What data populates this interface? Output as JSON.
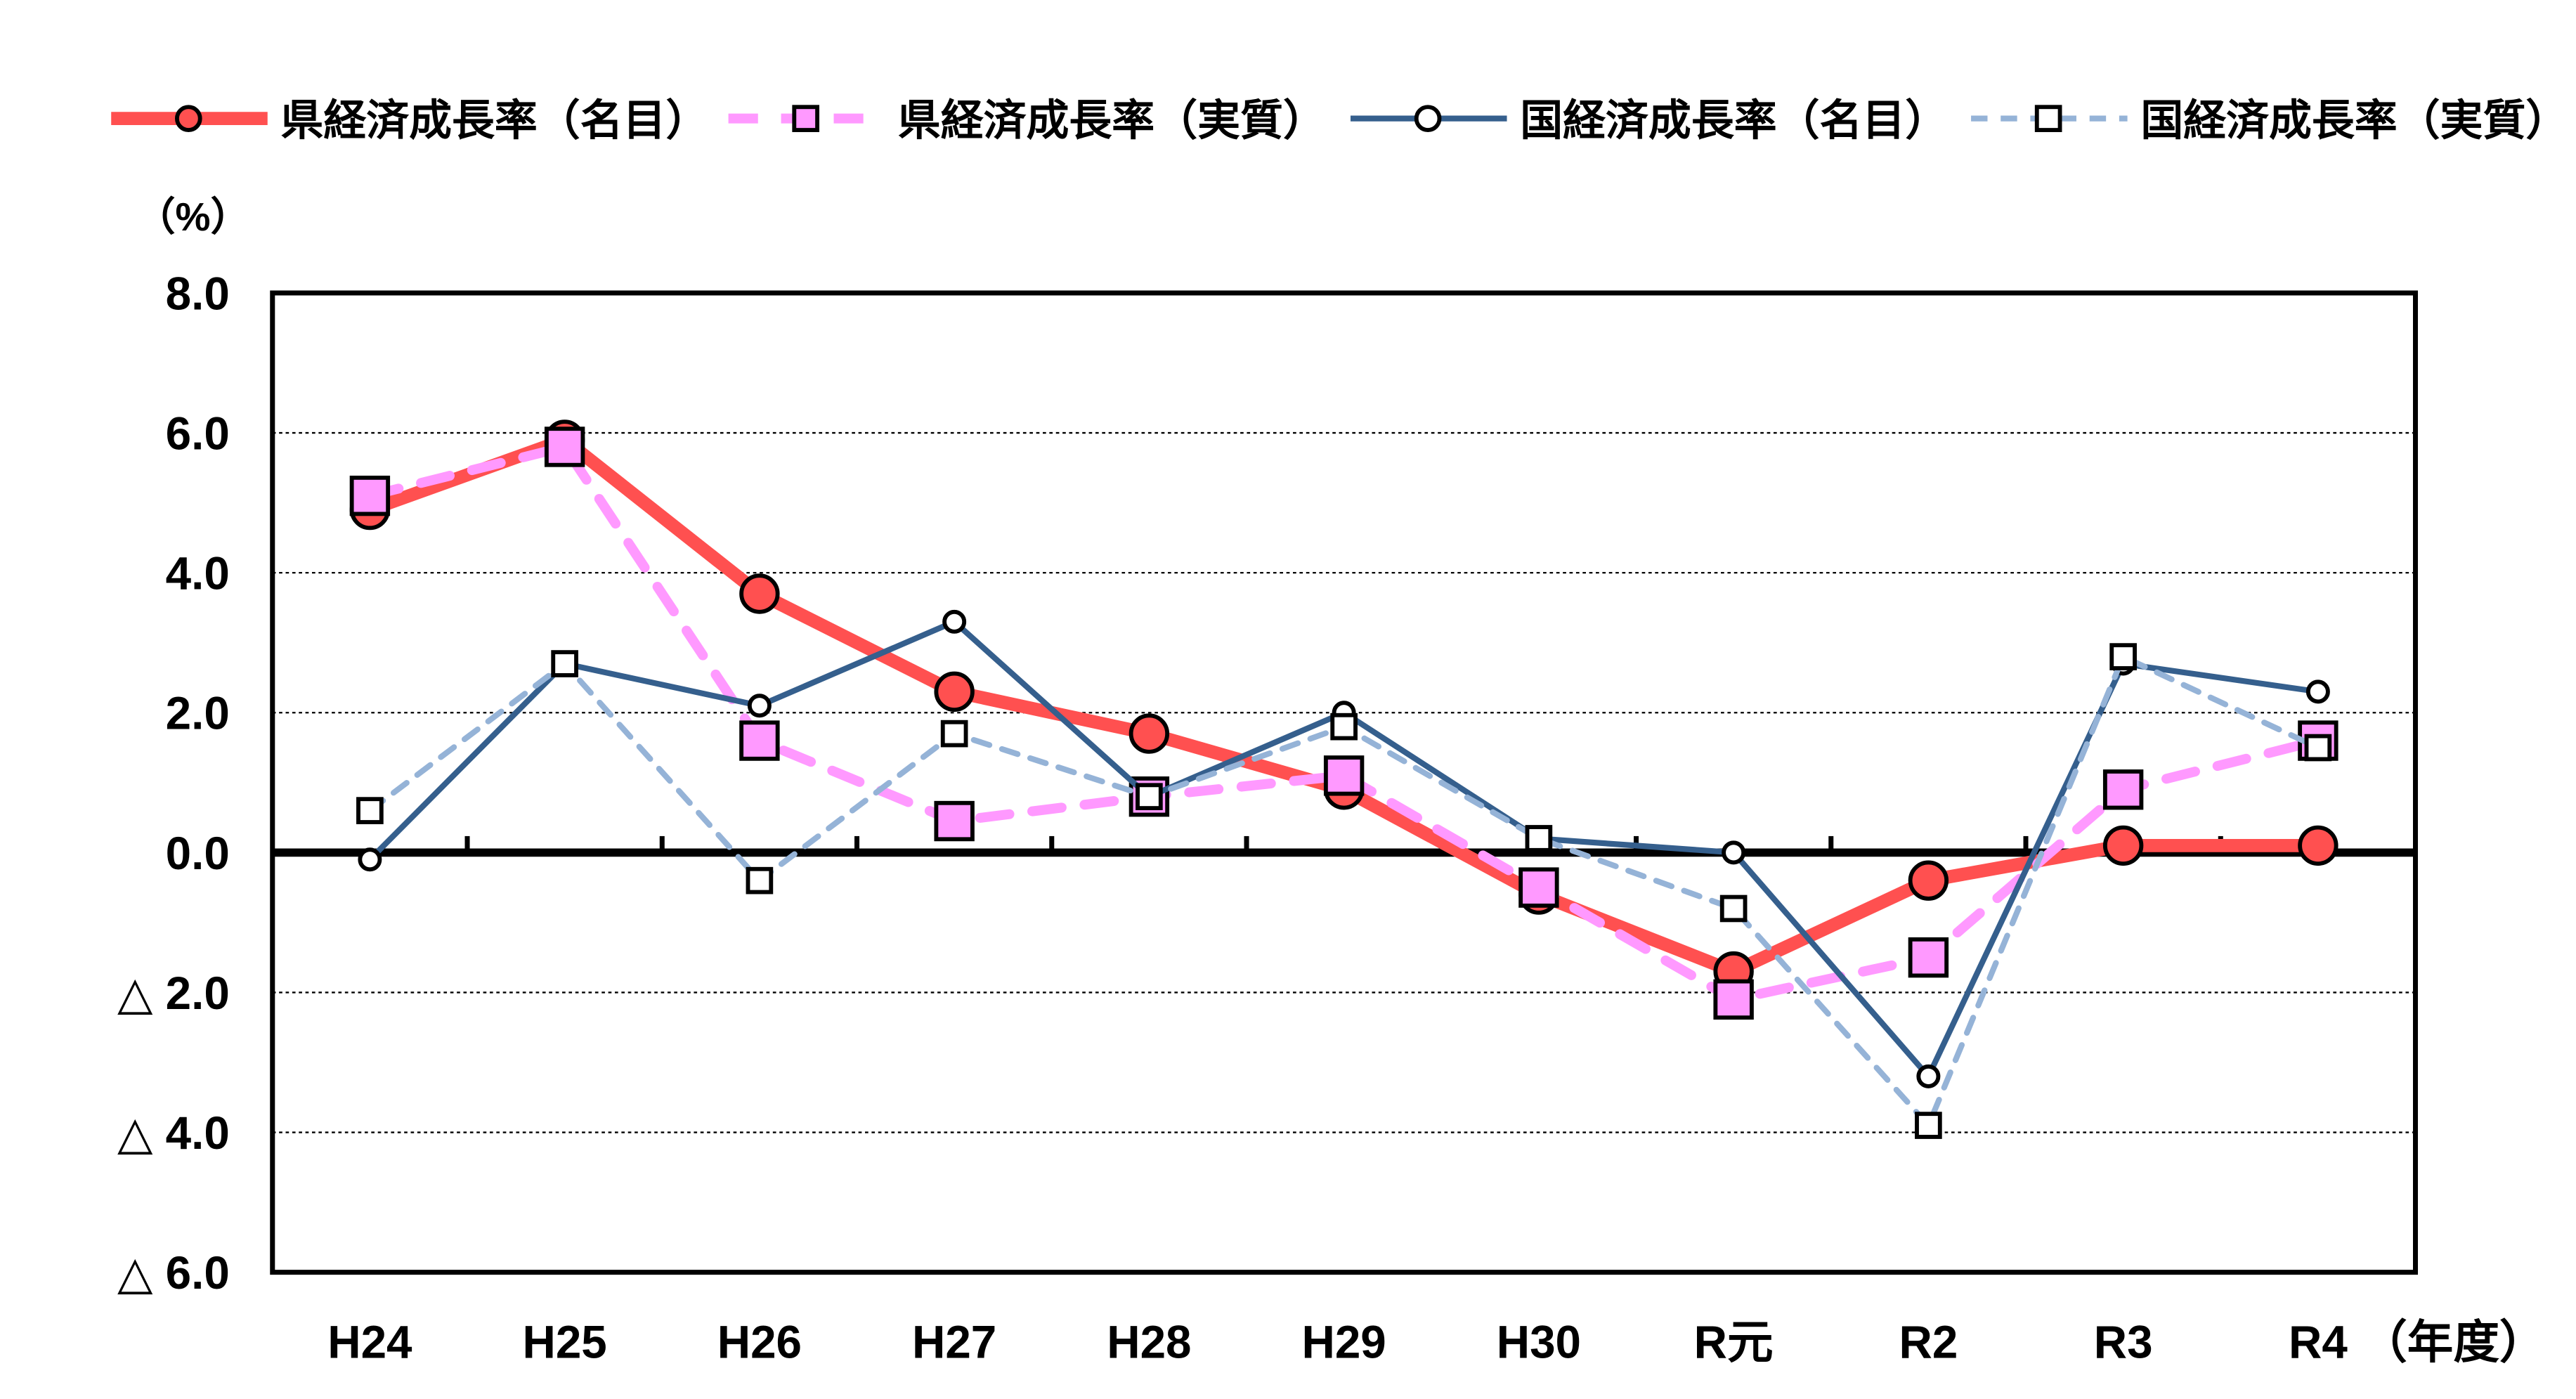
{
  "chart_data": {
    "type": "line",
    "title": "",
    "ylabel": "（%）",
    "xlabel": "（年度）",
    "categories": [
      "H24",
      "H25",
      "H26",
      "H27",
      "H28",
      "H29",
      "H30",
      "R元",
      "R2",
      "R3",
      "R4"
    ],
    "ylim": [
      -6,
      8
    ],
    "yticks": [
      8,
      6,
      4,
      2,
      0,
      -2,
      -4,
      -6
    ],
    "ytick_labels": [
      "8.0",
      "6.0",
      "4.0",
      "2.0",
      "0.0",
      "△ 2.0",
      "△ 4.0",
      "△ 6.0"
    ],
    "grid": true,
    "legend_position": "top",
    "series": [
      {
        "name": "県経済成長率（名目）",
        "color": "#FF5050",
        "marker": "circle-filled",
        "dash": "solid",
        "values": [
          4.9,
          5.9,
          3.7,
          2.3,
          1.7,
          0.9,
          -0.6,
          -1.7,
          -0.4,
          0.1,
          0.1
        ]
      },
      {
        "name": "県経済成長率（実質）",
        "color": "#FF99FF",
        "marker": "square-filled",
        "dash": "dashed",
        "values": [
          5.1,
          5.8,
          1.6,
          0.45,
          0.8,
          1.1,
          -0.5,
          -2.1,
          -1.5,
          0.9,
          1.6
        ]
      },
      {
        "name": "国経済成長率（名目）",
        "color": "#355F8D",
        "marker": "circle-open",
        "dash": "solid",
        "values": [
          -0.1,
          2.7,
          2.1,
          3.3,
          0.8,
          2.0,
          0.2,
          0.0,
          -3.2,
          2.7,
          2.3
        ]
      },
      {
        "name": "国経済成長率（実質）",
        "color": "#95B3D7",
        "marker": "square-open",
        "dash": "dashed",
        "values": [
          0.6,
          2.7,
          -0.4,
          1.7,
          0.8,
          1.8,
          0.2,
          -0.8,
          -3.9,
          2.8,
          1.5
        ]
      }
    ]
  }
}
